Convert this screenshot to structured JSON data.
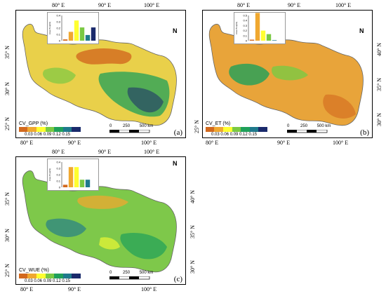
{
  "colors": {
    "c1": "#d2691e",
    "c2": "#f0a830",
    "c3": "#ffff30",
    "c4": "#7ac943",
    "c5": "#1fa05a",
    "c6": "#1f7a8c",
    "c7": "#1a2a6c",
    "background_land_a": "#e9d04a",
    "background_land_b": "#e8a43a",
    "background_land_c": "#7ec84a"
  },
  "axes": {
    "top_lon": [
      "80°  E",
      "90°  E",
      "100°  E"
    ],
    "bottom_lon": [
      "80°  E",
      "90°  E",
      "100°  E"
    ],
    "left_lat": [
      "35°  N",
      "30°  N",
      "25°  N"
    ],
    "right_lat": [
      "40°  N",
      "35°  N",
      "30°  N"
    ]
  },
  "north_label": "N",
  "legend_ticks": "0.03 0.06  0.09  0.12    0.15",
  "scale": {
    "labels": [
      "0",
      "250",
      "500 km"
    ]
  },
  "panels": [
    {
      "letter": "(a)",
      "legend_title": "CV_GPP (%)",
      "inset_ylabel": "Area Prop(%)",
      "inset": [
        0.02,
        0.14,
        0.32,
        0.21,
        0.09,
        0.21
      ],
      "inset_ticks": [
        "0.4",
        "0.3",
        "0.2",
        "0.1",
        "0"
      ]
    },
    {
      "letter": "(b)",
      "legend_title": "CV_ET (%)",
      "inset_ylabel": "Area Prop(%)",
      "inset": [
        0.02,
        0.55,
        0.2,
        0.13,
        0.01,
        0.0
      ],
      "inset_ticks": [
        "0.5",
        "0.4",
        "0.3",
        "0.2",
        "0.1",
        "0"
      ]
    },
    {
      "letter": "(c)",
      "legend_title": "CV_WUE (%)",
      "inset_ylabel": "Area Prop(%)",
      "inset": [
        0.04,
        0.32,
        0.32,
        0.12,
        0.12,
        0.0
      ],
      "inset_ticks": [
        "0.4",
        "0.3",
        "0.2",
        "0.1",
        "0"
      ]
    }
  ]
}
